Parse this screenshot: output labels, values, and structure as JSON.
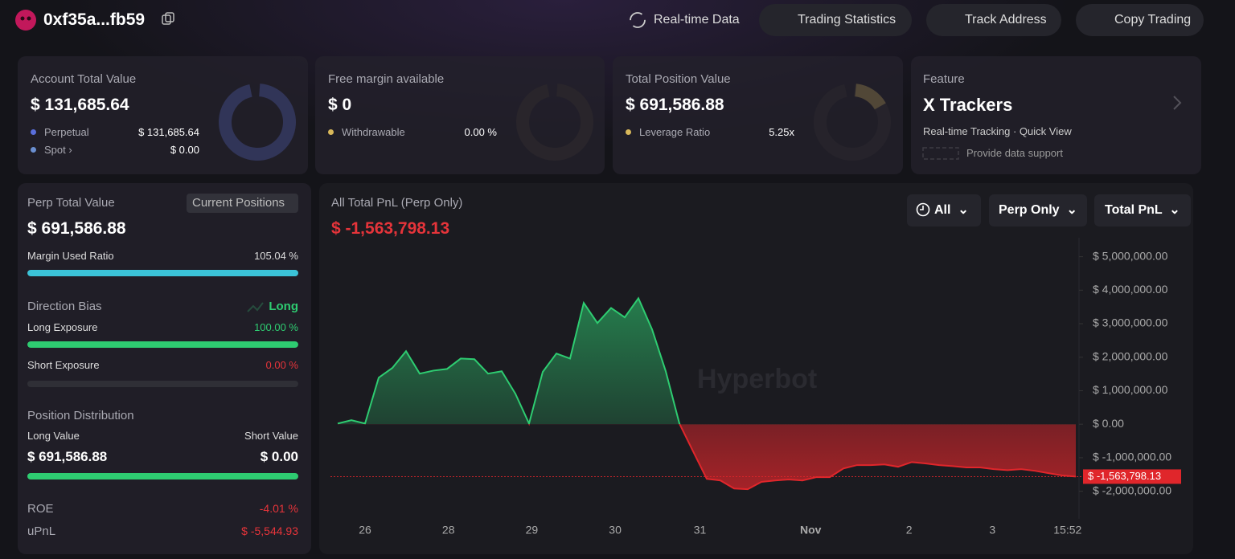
{
  "header": {
    "address": "0xf35a...fb59",
    "nav": [
      "Real-time Data",
      "Trading Statistics",
      "Track Address",
      "Copy Trading"
    ]
  },
  "cards": {
    "account": {
      "label": "Account Total Value",
      "value": "$ 131,685.64",
      "rows": [
        {
          "name": "Perpetual",
          "value": "$ 131,685.64"
        },
        {
          "name": "Spot",
          "value": "$ 0.00"
        }
      ]
    },
    "margin": {
      "label": "Free margin available",
      "value": "$ 0",
      "rows": [
        {
          "name": "Withdrawable",
          "value": "0.00 %"
        }
      ]
    },
    "position": {
      "label": "Total Position Value",
      "value": "$ 691,586.88",
      "rows": [
        {
          "name": "Leverage Ratio",
          "value": "5.25x"
        }
      ]
    },
    "feature": {
      "label": "Feature",
      "title": "X Trackers",
      "subtitle": "Real-time Tracking · Quick View",
      "support": "Provide data support"
    }
  },
  "perp": {
    "label": "Perp Total Value",
    "button": "Current Positions",
    "value": "$ 691,586.88",
    "margin_used": {
      "label": "Margin Used Ratio",
      "value": {
        "value": 105.04,
        "label": "105.04 %"
      }
    },
    "direction": {
      "label": "Direction Bias",
      "value": "Long"
    },
    "long_exposure": {
      "label": "Long Exposure",
      "value": {
        "value": 100,
        "label": "100.00 %"
      }
    },
    "short_exposure": {
      "label": "Short Exposure",
      "value": {
        "value": 0,
        "label": "0.00 %"
      }
    },
    "distribution": {
      "label": "Position Distribution",
      "long_label": "Long Value",
      "short_label": "Short Value",
      "long_value": "$ 691,586.88",
      "short_value": "$ 0.00"
    },
    "roe": {
      "label": "ROE",
      "value": "-4.01 %"
    },
    "upnl": {
      "label": "uPnL",
      "value": "$ -5,544.93"
    }
  },
  "pnl": {
    "title": "All Total PnL (Perp Only)",
    "total": "$ -1,563,798.13",
    "filters": [
      "All",
      "Perp Only",
      "Total PnL"
    ],
    "watermark": "Hyperbot",
    "chart_data": {
      "type": "line",
      "positive_color": "#2ecc71",
      "negative_color": "#e0262b",
      "values": [
        20000,
        120000,
        20000,
        1390000,
        1680000,
        2180000,
        1510000,
        1600000,
        1650000,
        1960000,
        1940000,
        1510000,
        1580000,
        910000,
        20000,
        1560000,
        2110000,
        1960000,
        3620000,
        3020000,
        3470000,
        3190000,
        3760000,
        2830000,
        1580000,
        20000,
        -810000,
        -1630000,
        -1680000,
        -1920000,
        -1940000,
        -1720000,
        -1680000,
        -1650000,
        -1680000,
        -1580000,
        -1580000,
        -1320000,
        -1220000,
        -1220000,
        -1200000,
        -1270000,
        -1130000,
        -1170000,
        -1220000,
        -1250000,
        -1290000,
        -1290000,
        -1340000,
        -1370000,
        -1340000,
        -1390000,
        -1460000,
        -1530000,
        -1563798.13
      ],
      "xlim": [
        0,
        54
      ],
      "xticks": [
        {
          "value": 2,
          "label": "26"
        },
        {
          "value": 8.1,
          "label": "28"
        },
        {
          "value": 14.2,
          "label": "29"
        },
        {
          "value": 20.3,
          "label": "30"
        },
        {
          "value": 26.5,
          "label": "31"
        },
        {
          "value": 34.6,
          "label": "Nov"
        },
        {
          "value": 41.8,
          "label": "2"
        },
        {
          "value": 47.9,
          "label": "3"
        },
        {
          "value": 53.4,
          "label": "15:52"
        }
      ],
      "ylim": [
        -2800000,
        5350000
      ],
      "yticks": [
        {
          "value": 5000000,
          "label": "$ 5,000,000.00"
        },
        {
          "value": 4000000,
          "label": "$ 4,000,000.00"
        },
        {
          "value": 3000000,
          "label": "$ 3,000,000.00"
        },
        {
          "value": 2000000,
          "label": "$ 2,000,000.00"
        },
        {
          "value": 1000000,
          "label": "$ 1,000,000.00"
        },
        {
          "value": 0,
          "label": "$ 0.00"
        },
        {
          "value": -1000000,
          "label": "$ -1,000,000.00"
        },
        {
          "value": -2000000,
          "label": "$ -2,000,000.00"
        }
      ]
    }
  }
}
